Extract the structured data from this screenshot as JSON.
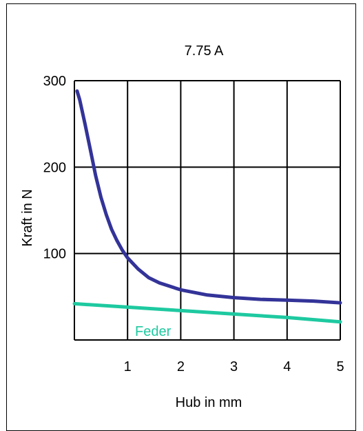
{
  "chart_data": {
    "type": "line",
    "title": "7.75 A",
    "xlabel": "Hub in mm",
    "ylabel": "Kraft in N",
    "xlim": [
      0,
      5
    ],
    "ylim": [
      0,
      300
    ],
    "x_ticks": [
      1,
      2,
      3,
      4,
      5
    ],
    "y_ticks": [
      100,
      200,
      300
    ],
    "grid": true,
    "series": [
      {
        "name": "",
        "color": "#333399",
        "x": [
          0.05,
          0.1,
          0.2,
          0.3,
          0.4,
          0.5,
          0.6,
          0.7,
          0.8,
          0.9,
          1.0,
          1.2,
          1.4,
          1.6,
          1.8,
          2.0,
          2.5,
          3.0,
          3.5,
          4.0,
          4.5,
          5.0
        ],
        "y": [
          288,
          278,
          250,
          220,
          190,
          165,
          145,
          128,
          115,
          104,
          95,
          82,
          72,
          66,
          62,
          58,
          52,
          49,
          47,
          46,
          45,
          43
        ]
      },
      {
        "name": "Feder",
        "color": "#1ec9a0",
        "x": [
          0,
          1,
          2,
          3,
          4,
          5
        ],
        "y": [
          42,
          38,
          34,
          30,
          26,
          21
        ]
      }
    ]
  }
}
